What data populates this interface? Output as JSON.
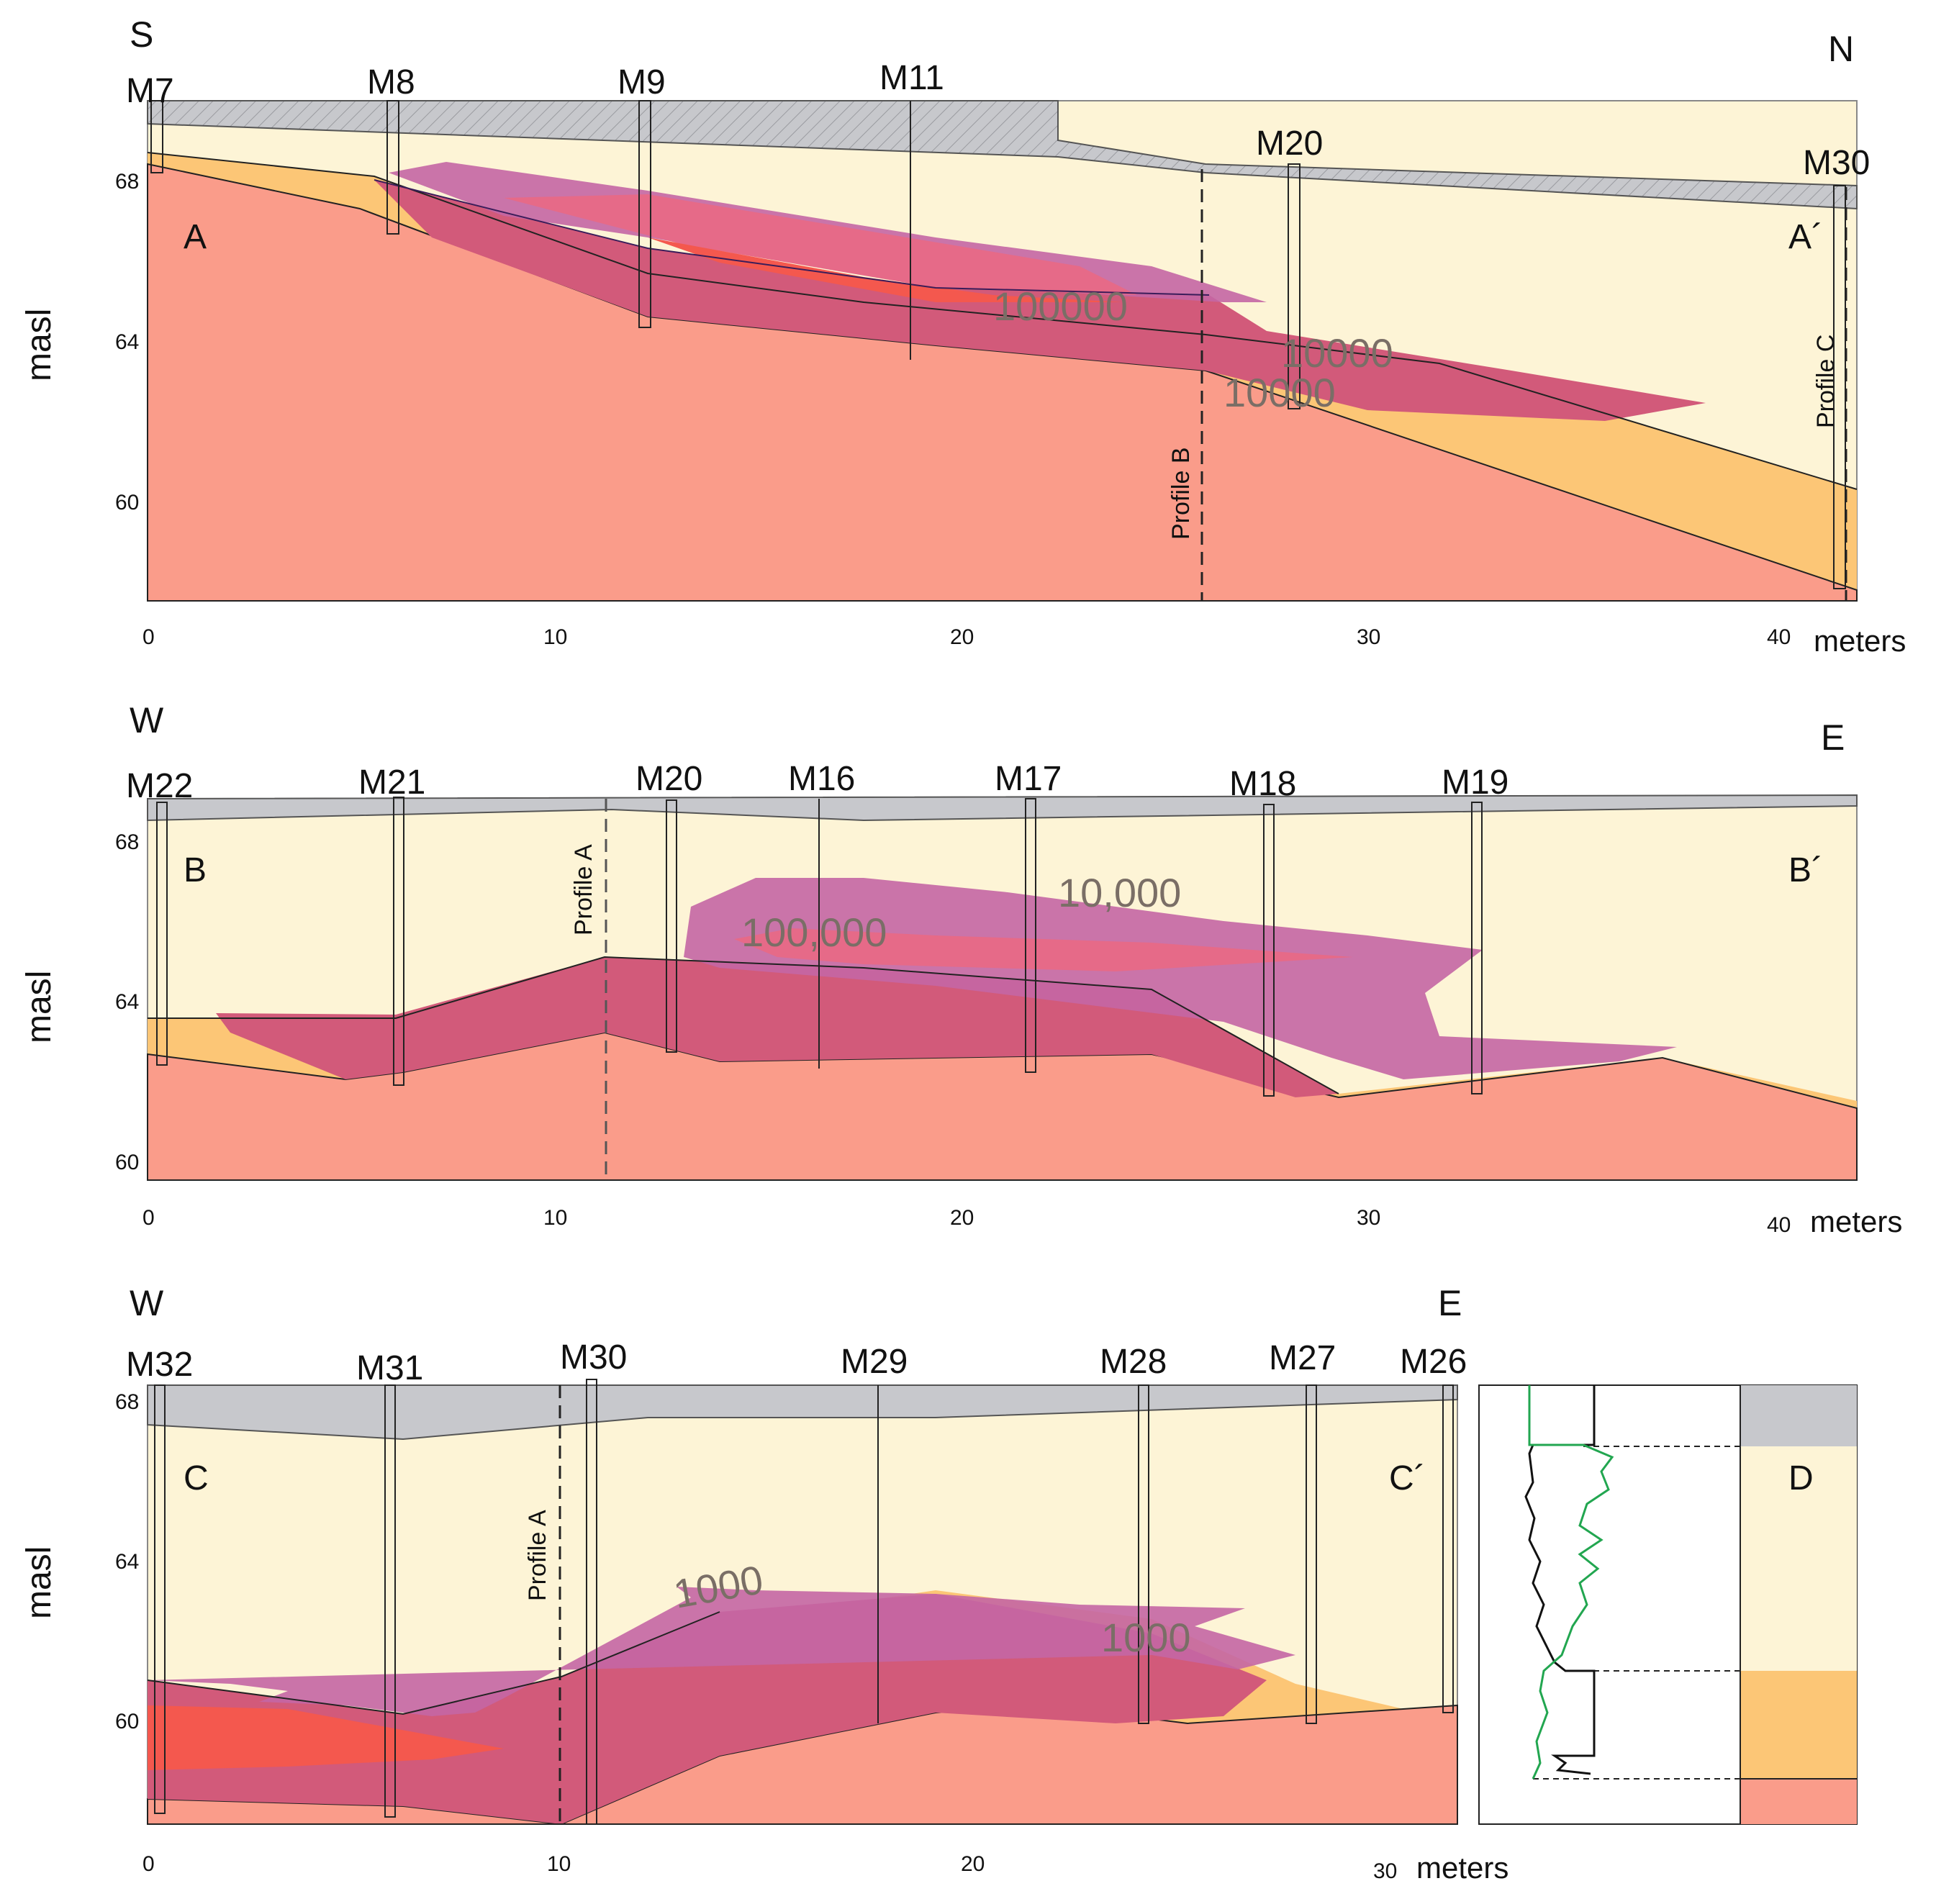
{
  "colors": {
    "fill": "#c7c8cc",
    "sand": "#fdf4d6",
    "gravel": "#fcc676",
    "till": "#fa9c8a",
    "plume_outer": "#c466a4",
    "plume_mid": "#e66a88",
    "plume_core": "#f4584e",
    "plume_body": "#d25a7a",
    "log_green": "#22a650",
    "log_black": "#111111"
  },
  "profiles": [
    {
      "id": "A",
      "direction_left": "S",
      "direction_right": "N",
      "label_left": "A",
      "label_right": "A´",
      "y_axis_title": "masl",
      "y_ticks": [
        "68",
        "64",
        "60"
      ],
      "x_ticks": [
        "0",
        "10",
        "20",
        "30",
        "40"
      ],
      "x_unit": "meters",
      "wells": [
        "M7",
        "M8",
        "M9",
        "M11",
        "M20",
        "M30"
      ],
      "contours": [
        "100000",
        "10000",
        "10000"
      ],
      "crossing": "Profile B",
      "crossing_right": "Profile C"
    },
    {
      "id": "B",
      "direction_left": "W",
      "direction_right": "E",
      "label_left": "B",
      "label_right": "B´",
      "y_axis_title": "masl",
      "y_ticks": [
        "68",
        "64",
        "60"
      ],
      "x_ticks": [
        "0",
        "10",
        "20",
        "30",
        "40"
      ],
      "x_unit": "meters",
      "wells": [
        "M22",
        "M21",
        "M20",
        "M16",
        "M17",
        "M18",
        "M19"
      ],
      "contours": [
        "100,000",
        "10,000"
      ],
      "crossing": "Profile A"
    },
    {
      "id": "C",
      "direction_left": "W",
      "direction_right": "E",
      "label_left": "C",
      "label_right": "C´",
      "y_axis_title": "masl",
      "y_ticks": [
        "68",
        "64",
        "60"
      ],
      "x_ticks": [
        "0",
        "10",
        "20",
        "30"
      ],
      "x_unit": "meters",
      "wells": [
        "M32",
        "M31",
        "M30",
        "M29",
        "M28",
        "M27",
        "M26"
      ],
      "contours": [
        "1000",
        "1000"
      ],
      "crossing": "Profile A"
    }
  ],
  "log_panel": {
    "label": "D"
  }
}
